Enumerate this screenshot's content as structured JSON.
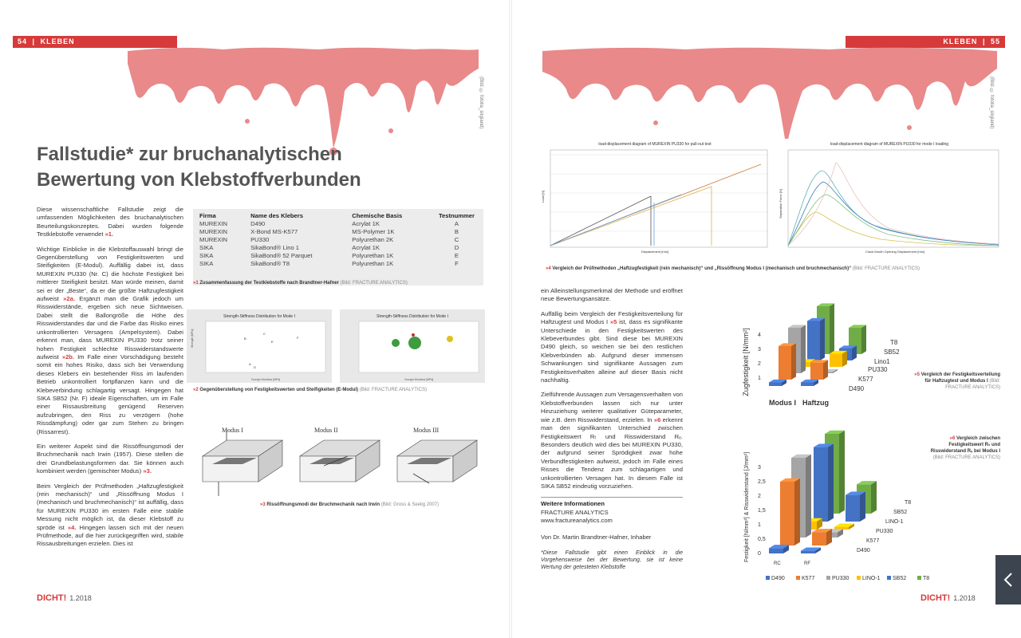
{
  "header": {
    "left_page": "54",
    "left_section": "KLEBEN",
    "right_section": "KLEBEN",
    "right_page": "55",
    "sep": "|"
  },
  "photo_credit": "(Bild: © fotolia_sirgiand)",
  "title": {
    "line1": "Fallstudie* zur bruchanalytischen",
    "line2": "Bewertung von Klebstoffverbunden"
  },
  "left_col": {
    "p1": "Diese wissenschaftliche Fallstudie zeigt die umfassenden Möglichkeiten des bruchanalytischen Beurteilungskonzeptes. Dabei wurden folgende Testklebstoffe verwendet ",
    "p1_ref": "»1.",
    "p2a": "Wichtige Einblicke in die Klebstoffauswahl bringt die Gegenüberstellung von Festigkeitswerten und Steifigkeiten (E-Modul). Auffällig dabei ist, dass MUREXIN PU330 (Nr. C) die höchste Festigkeit bei mittlerer Steifigkeit besitzt. Man würde meinen, damit sei er der „Beste“, da er die größte Haftzugfestigkeit aufweist ",
    "p2_ref1": "»2a.",
    "p2b": " Ergänzt man die Grafik jedoch um Risswiderstände, ergeben sich neue Sichtweisen. Dabei stellt die Ballongröße die Höhe des Risswiderstandes dar und die Farbe das Risiko eines unkontrollierten Versagens (Ampelsystem). Dabei erkennt man, dass MUREXIN PU330 trotz seiner hohen Festigkeit schlechte Risswiderstandswerte aufweist ",
    "p2_ref2": "»2b.",
    "p2c": " Im Falle einer Vorschädigung besteht somit ein hohes Risiko, dass sich bei Verwendung dieses Klebers ein bestehender Riss im laufenden Betrieb unkontrolliert fortpflanzen kann und die Klebeverbindung schlagartig versagt. Hingegen hat SIKA SB52 (Nr. F) ideale Eigenschaften, um im Falle einer Rissausbreitung genügend Reserven aufzubringen, den Riss zu verzögern (hohe Rissdämpfung) oder gar zum Stehen zu bringen (Rissarrest).",
    "p3": "Ein weiterer Aspekt sind die Rissöffnungsmodi der Bruchmechanik nach Irwin (1957). Diese stellen die drei Grundbelastungsformen dar. Sie können auch kombiniert werden (gemischter Modus) ",
    "p3_ref": "»3.",
    "p4a": "Beim Vergleich der Prüfmethoden „Haftzugfestigkeit (rein mechanisch)“ und „Rissöffnung Modus I (mechanisch und bruchmechanisch)“ ist auffällig, dass für MUREXIN PU330 im ersten Falle eine stabile Messung nicht möglich ist, da dieser Klebstoff zu spröde ist ",
    "p4_ref": "»4.",
    "p4b": " Hingegen lassen sich mit der neuen Prüfmethode, auf die hier zurückgegriffen wird, stabile Rissausbreitungen erzielen. Dies ist"
  },
  "table": {
    "headers": [
      "Firma",
      "Name des Klebers",
      "Chemische Basis",
      "Testnummer"
    ],
    "rows": [
      [
        "MUREXIN",
        "D490",
        "Acrylat 1K",
        "A"
      ],
      [
        "MUREXIN",
        "X-Bond MS-K577",
        "MS-Polymer 1K",
        "B"
      ],
      [
        "MUREXIN",
        "PU330",
        "Polyurethan 2K",
        "C"
      ],
      [
        "SIKA",
        "SikaBond® Lino 1",
        "Acrylat 1K",
        "D"
      ],
      [
        "SIKA",
        "SikaBond® 52 Parquet",
        "Polyurethan 1K",
        "E"
      ],
      [
        "SIKA",
        "SikaBond® T8",
        "Polyurethan 1K",
        "F"
      ]
    ],
    "caption_mark": "»1",
    "caption": "Zusammenfassung der Testklebstoffe nach Brandtner-Hafner",
    "caption_src": "(Bild: FRACTURE ANALYTICS)"
  },
  "fig2": {
    "a_title": "Strength-Stiffness Distribution for Mode I",
    "b_title": "Strength-Stiffness Distribution for Mode I",
    "xlabel": "Young's Modulus [MPa]",
    "ylabel": "Strength [MPa]",
    "caption_mark": "»2",
    "caption": "Gegenüberstellung von Festigkeitswerten und Steifigkeiten (E-Modul)",
    "caption_src": "(Bild: FRACTURE ANALYTICS)",
    "point_labels": [
      "A",
      "B",
      "C",
      "D",
      "E",
      "F"
    ]
  },
  "fig3": {
    "modes": [
      "Modus I",
      "Modus II",
      "Modus III"
    ],
    "caption_mark": "»3",
    "caption": "Rissöffnungsmodi der Bruchmechanik nach Irwin",
    "caption_src": "(Bild: Gross & Seelig 2007)"
  },
  "fig4": {
    "a_title": "load-displacement diagram of MUREXIN PU330 for pull-out test",
    "b_title": "load-displacement diagram of MUREXIN PU330 for mode I loading",
    "a_xlabel": "Displacement [mm]",
    "a_ylabel": "Load [N]",
    "b_xlabel": "Crack Mouth Opening Displacement [mm]",
    "b_ylabel": "Separation Force [N]",
    "caption_mark": "»4",
    "caption": "Vergleich der Prüfmethoden „Haftzugfestigkeit (rein mechanisch)“ und „Rissöffnung Modus I (mechanisch und bruchmechanisch)“",
    "caption_src": "(Bild: FRACTURE ANALYTICS)"
  },
  "right_col": {
    "p0": "ein Alleinstellungsmerkmal der Methode und eröffnet neue Bewertungsansätze.",
    "p1a": "Auffällig beim Vergleich der Festigkeitsverteilung für Haftzugtest und Modus I ",
    "p1_ref": "»5",
    "p1b": " ist, dass es signifikante Unterschiede in den Festigkeitswerten des Klebeverbundes gibt. Sind diese bei MUREXIN D490 gleich, so weichen sie bei den restlichen Klebverbünden ab. Aufgrund dieser immensen Schwankungen sind signifikante Aussagen zum Festigkeitsverhalten alleine auf dieser Basis nicht nachhaltig.",
    "p2": "Zielführende Aussagen zum Versagensverhalten von Klebstoffverbunden lassen sich nur unter Hinzuziehung weiterer qualitativer Güteparameter, wie z.B. dem Risswiderstand, erzielen. In ",
    "p2_ref": "»6",
    "p2b": " erkennt man den signifikanten Unterschied zwischen Festigkeitswert Rₜ und Risswiderstand Rₑ. Besonders deutlich wird dies bei MUREXIN PU330, der aufgrund seiner Sprödigkeit zwar hohe Verbundfestigkeiten aufweist, jedoch im Falle eines Risses die Tendenz zum schlagartigen und unkontrollierten Versagen hat. In diesem Falle ist SIKA SB52 eindeutig vorzuziehen.",
    "info_head": "Weitere Informationen",
    "info_1": "FRACTURE ANALYTICS",
    "info_2": "www.fractureanalytics.com",
    "author": "Von Dr. Martin Brandtner-Hafner, Inhaber",
    "footnote": "*Diese Fallstudie gibt einen Einblick in die Vorgehensweise bei der Bewertung, sie ist keine Wertung der getesteten Klebstoffe"
  },
  "fig5": {
    "ylabel": "Zugfestigkeit [N/mm²]",
    "rows": [
      "Modus I",
      "Haftzug"
    ],
    "series": [
      "T8",
      "SB52",
      "Lino1",
      "PU330",
      "K577",
      "D490"
    ],
    "yticks": [
      "1",
      "2",
      "3",
      "4"
    ],
    "caption_mark": "»5",
    "caption": "Vergleich der Festigkeitsverteilung für Haftzugtest und Modus I",
    "caption_src": "(Bild: FRACTURE ANALYTICS)"
  },
  "fig6": {
    "ylabel": "Festigkeit [N/mm²] & Risswiderstand [J/mm²]",
    "rows": [
      "RC",
      "RF"
    ],
    "series_labels": [
      "T8",
      "SB52",
      "LINO-1",
      "PU330",
      "K577",
      "D490"
    ],
    "yticks": [
      "0",
      "0,5",
      "1",
      "1,5",
      "2",
      "2,5",
      "3"
    ],
    "legend": [
      "D490",
      "K577",
      "PU330",
      "LINO-1",
      "SB52",
      "T8"
    ],
    "legend_colors": [
      "#4472c4",
      "#ed7d31",
      "#a5a5a5",
      "#ffc000",
      "#4472c4",
      "#70ad47"
    ],
    "caption_mark": "»6",
    "caption": "Vergleich zwischen Festigkeitswert Rₜ und Risswiderstand Rₑ bei Modus I",
    "caption_src": "(Bild: FRACTURE ANALYTICS)"
  },
  "footer": {
    "brand": "DICHT",
    "ex": "!",
    "issue": "1.2018"
  },
  "chart_data": [
    {
      "type": "bar",
      "title": "Festigkeitsverteilung Haftzugtest und Modus I",
      "ylabel": "Zugfestigkeit [N/mm²]",
      "categories": [
        "Modus I",
        "Haftzug"
      ],
      "series": [
        {
          "name": "D490",
          "values": [
            0.3,
            0.3
          ]
        },
        {
          "name": "K577",
          "values": [
            2.8,
            1.4
          ]
        },
        {
          "name": "PU330",
          "values": [
            3.8,
            0.0
          ]
        },
        {
          "name": "Lino1",
          "values": [
            0.4,
            1.1
          ]
        },
        {
          "name": "SB52",
          "values": [
            3.3,
            1.0
          ]
        },
        {
          "name": "T8",
          "values": [
            4.0,
            2.2
          ]
        }
      ],
      "ylim": [
        0,
        4
      ]
    },
    {
      "type": "bar",
      "title": "Festigkeitswert RC und Risswiderstand RF",
      "ylabel": "Festigkeit [N/mm²] & Risswiderstand [J/mm²]",
      "categories": [
        "RC",
        "RF"
      ],
      "series": [
        {
          "name": "D490",
          "values": [
            0.2,
            0.1
          ]
        },
        {
          "name": "K577",
          "values": [
            2.4,
            0.5
          ]
        },
        {
          "name": "PU330",
          "values": [
            3.0,
            0.2
          ]
        },
        {
          "name": "LINO-1",
          "values": [
            0.3,
            0.1
          ]
        },
        {
          "name": "SB52",
          "values": [
            2.8,
            1.0
          ]
        },
        {
          "name": "T8",
          "values": [
            3.0,
            1.1
          ]
        }
      ],
      "ylim": [
        0,
        3
      ]
    }
  ]
}
